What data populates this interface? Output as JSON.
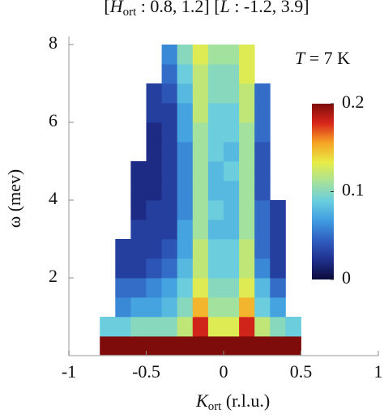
{
  "chart_data": {
    "type": "heatmap",
    "title_parts": [
      "[",
      "H",
      "ort",
      " : 0.8, 1.2] [",
      "L",
      " : -1.2, 3.9]"
    ],
    "annotation_parts": [
      "T",
      " = 7 K"
    ],
    "x_label_parts": [
      "K",
      "ort",
      " (r.l.u.)"
    ],
    "y_label": "ω (mev)",
    "xlim": [
      -1,
      1
    ],
    "xticks": [
      -1,
      -0.5,
      0,
      0.5,
      1
    ],
    "ylim": [
      0,
      8
    ],
    "yticks": [
      2,
      4,
      6,
      8
    ],
    "xbins": [
      -0.8,
      -0.7,
      -0.6,
      -0.5,
      -0.4,
      -0.3,
      -0.2,
      -0.1,
      0,
      0.1,
      0.2,
      0.3,
      0.4,
      0.5
    ],
    "ybins": [
      0,
      0.5,
      1,
      1.5,
      2,
      2.5,
      3,
      3.5,
      4,
      4.5,
      5,
      5.5,
      6,
      6.5,
      7,
      7.5,
      8
    ],
    "z": [
      [
        0.2,
        0.2,
        0.2,
        0.2,
        0.2,
        0.2,
        0.2,
        0.2,
        0.2,
        0.2,
        0.2,
        0.2,
        0.2
      ],
      [
        0.09,
        0.09,
        0.1,
        0.1,
        0.1,
        0.12,
        0.18,
        0.13,
        0.13,
        0.18,
        0.12,
        0.1,
        0.09
      ],
      [
        null,
        0.06,
        0.07,
        0.07,
        0.08,
        0.1,
        0.15,
        0.11,
        0.11,
        0.15,
        0.09,
        0.07,
        null
      ],
      [
        null,
        0.05,
        0.05,
        0.06,
        0.07,
        0.09,
        0.13,
        0.1,
        0.1,
        0.13,
        0.08,
        0.05,
        null
      ],
      [
        null,
        0.03,
        0.03,
        0.04,
        0.05,
        0.08,
        0.12,
        0.09,
        0.09,
        0.12,
        0.06,
        0.03,
        null
      ],
      [
        null,
        0.03,
        0.03,
        0.03,
        0.04,
        0.07,
        0.12,
        0.09,
        0.09,
        0.12,
        0.05,
        0.03,
        null
      ],
      [
        null,
        null,
        0.03,
        0.03,
        0.03,
        0.07,
        0.11,
        0.08,
        0.08,
        0.11,
        0.05,
        0.03,
        null
      ],
      [
        null,
        null,
        0.02,
        0.03,
        0.03,
        0.06,
        0.11,
        0.09,
        0.08,
        0.11,
        0.05,
        0.03,
        null
      ],
      [
        null,
        null,
        0.02,
        0.02,
        0.03,
        0.06,
        0.11,
        0.08,
        0.08,
        0.11,
        0.04,
        null,
        null
      ],
      [
        null,
        null,
        0.02,
        0.02,
        0.03,
        0.06,
        0.11,
        0.08,
        0.09,
        0.11,
        0.04,
        null,
        null
      ],
      [
        null,
        null,
        null,
        0.02,
        0.03,
        0.06,
        0.11,
        0.09,
        0.08,
        0.11,
        0.04,
        null,
        null
      ],
      [
        null,
        null,
        null,
        0.02,
        0.03,
        0.07,
        0.11,
        0.09,
        0.09,
        0.11,
        0.05,
        null,
        null
      ],
      [
        null,
        null,
        null,
        0.03,
        0.03,
        0.07,
        0.12,
        0.09,
        0.09,
        0.12,
        0.05,
        null,
        null
      ],
      [
        null,
        null,
        null,
        0.03,
        0.04,
        0.08,
        0.12,
        0.1,
        0.1,
        0.12,
        0.05,
        null,
        null
      ],
      [
        null,
        null,
        null,
        null,
        0.05,
        0.09,
        0.12,
        0.1,
        0.1,
        0.13,
        null,
        null,
        null
      ],
      [
        null,
        null,
        null,
        null,
        0.06,
        0.1,
        0.13,
        0.11,
        0.11,
        0.13,
        null,
        null,
        null
      ]
    ],
    "zlim": [
      0,
      0.2
    ],
    "zticks": [
      0,
      0.1,
      0.2
    ],
    "colormap": [
      "#0b0b3a",
      "#1f2f8c",
      "#2f5ec0",
      "#3f9be0",
      "#69cde0",
      "#a6e29a",
      "#e8ec46",
      "#f5a324",
      "#d9261b",
      "#7d0c0a"
    ]
  }
}
